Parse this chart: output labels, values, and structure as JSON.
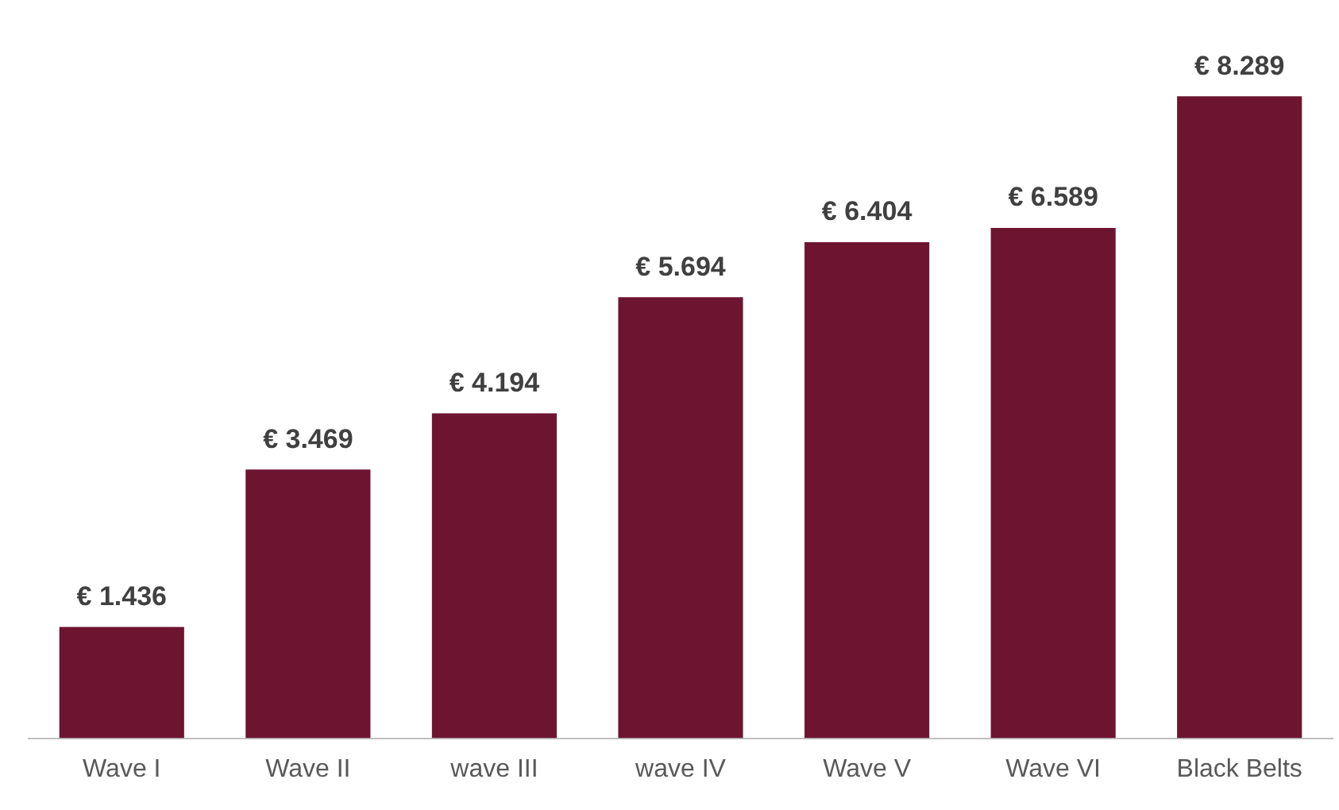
{
  "chart_data": {
    "type": "bar",
    "categories": [
      "Wave I",
      "Wave II",
      "wave III",
      "wave IV",
      "Wave V",
      "Wave VI",
      "Black Belts"
    ],
    "values": [
      1436,
      3469,
      4194,
      5694,
      6404,
      6589,
      8289
    ],
    "value_labels": [
      "€ 1.436",
      "€ 3.469",
      "€ 4.194",
      "€ 5.694",
      "€ 6.404",
      "€ 6.589",
      "€ 8.289"
    ],
    "color": "#6d1431",
    "grid": false,
    "legend": false
  }
}
